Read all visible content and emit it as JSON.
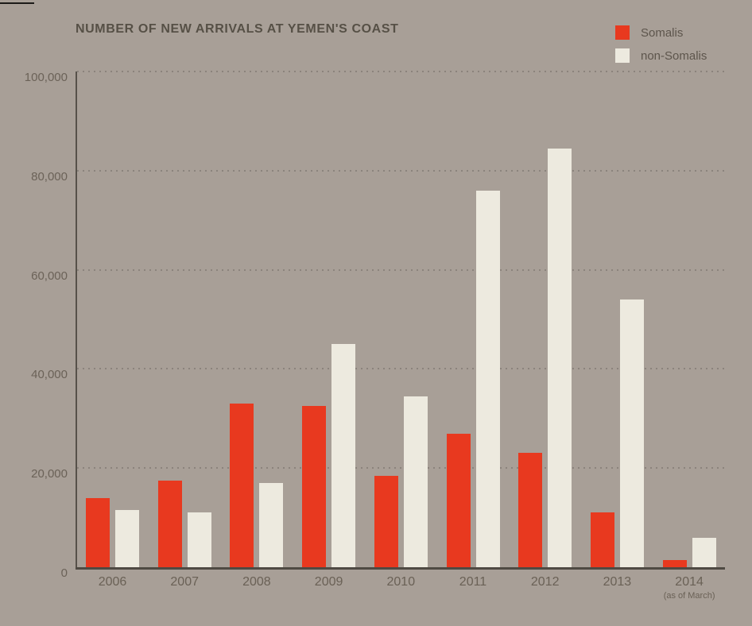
{
  "header": {
    "title": "NUMBER OF NEW ARRIVALS AT YEMEN'S COAST"
  },
  "legend": {
    "items": [
      {
        "label": "Somalis",
        "color": "#e8391f"
      },
      {
        "label": "non-Somalis",
        "color": "#edeadf"
      }
    ]
  },
  "colors": {
    "background": "#a89f97",
    "somalis": "#e8391f",
    "non_somalis": "#edeadf",
    "axis": "#4f4a43",
    "gridline": "#8b837c",
    "title_text": "#565046",
    "label_text": "#6a6156"
  },
  "chart_data": {
    "type": "bar",
    "title": "NUMBER OF NEW ARRIVALS AT YEMEN'S COAST",
    "categories": [
      "2006",
      "2007",
      "2008",
      "2009",
      "2010",
      "2011",
      "2012",
      "2013",
      "2014"
    ],
    "category_sublabels": [
      "",
      "",
      "",
      "",
      "",
      "",
      "",
      "",
      "(as of March)"
    ],
    "series": [
      {
        "name": "Somalis",
        "color": "#e8391f",
        "values": [
          14000,
          17500,
          33000,
          32500,
          18500,
          27000,
          23000,
          11000,
          1500
        ]
      },
      {
        "name": "non-Somalis",
        "color": "#edeadf",
        "values": [
          11500,
          11000,
          17000,
          45000,
          34500,
          76000,
          84500,
          54000,
          6000
        ]
      }
    ],
    "xlabel": "",
    "ylabel": "",
    "ylim": [
      0,
      100000
    ],
    "yticks": [
      0,
      20000,
      40000,
      60000,
      80000,
      100000
    ],
    "ytick_labels": [
      "0",
      "20,000",
      "40,000",
      "60,000",
      "80,000",
      "100,000"
    ],
    "grid": "dotted-horizontal",
    "legend_position": "top-right"
  }
}
